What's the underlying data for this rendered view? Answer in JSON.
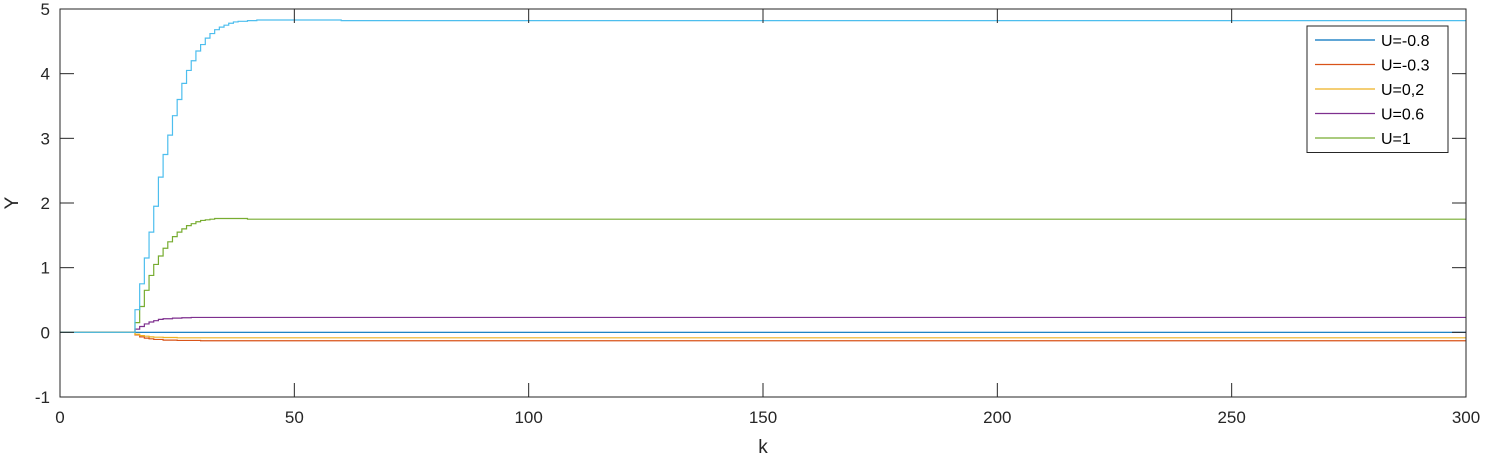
{
  "chart_data": {
    "type": "line",
    "step": true,
    "xlabel": "k",
    "ylabel": "Y",
    "xlim": [
      0,
      300
    ],
    "ylim": [
      -1,
      5
    ],
    "xticks": [
      0,
      50,
      100,
      150,
      200,
      250,
      300
    ],
    "yticks": [
      -1,
      0,
      1,
      2,
      3,
      4,
      5
    ],
    "grid": false,
    "legend_position": "top-right",
    "series": [
      {
        "name": "U=-0.8",
        "color": "#0072BD",
        "x": [
          0,
          15,
          17,
          20,
          25,
          30,
          40,
          60,
          300
        ],
        "y": [
          0,
          0,
          0,
          0,
          0,
          0,
          0,
          0,
          0
        ]
      },
      {
        "name": "U=-0.3",
        "color": "#D95319",
        "x": [
          0,
          15,
          16,
          17,
          18,
          19,
          20,
          22,
          25,
          30,
          35,
          40,
          60,
          300
        ],
        "y": [
          0,
          0,
          -0.04,
          -0.07,
          -0.09,
          -0.1,
          -0.11,
          -0.12,
          -0.125,
          -0.13,
          -0.13,
          -0.13,
          -0.13,
          -0.13
        ]
      },
      {
        "name": "U=0,2",
        "color": "#EDB120",
        "x": [
          0,
          15,
          16,
          17,
          18,
          19,
          20,
          22,
          25,
          30,
          35,
          40,
          60,
          300
        ],
        "y": [
          0,
          0,
          -0.03,
          -0.05,
          -0.06,
          -0.07,
          -0.075,
          -0.08,
          -0.085,
          -0.085,
          -0.085,
          -0.085,
          -0.085,
          -0.085
        ]
      },
      {
        "name": "U=0.6",
        "color": "#7E2F8E",
        "x": [
          0,
          15,
          16,
          17,
          18,
          19,
          20,
          21,
          22,
          24,
          26,
          28,
          30,
          35,
          40,
          60,
          300
        ],
        "y": [
          0,
          0,
          0.05,
          0.09,
          0.13,
          0.16,
          0.18,
          0.2,
          0.21,
          0.22,
          0.225,
          0.23,
          0.23,
          0.23,
          0.23,
          0.23,
          0.23
        ]
      },
      {
        "name": "U=1",
        "color": "#77AC30",
        "x": [
          0,
          15,
          16,
          17,
          18,
          19,
          20,
          21,
          22,
          23,
          24,
          25,
          26,
          27,
          28,
          29,
          30,
          31,
          32,
          33,
          35,
          40,
          60,
          300
        ],
        "y": [
          0,
          0,
          0.15,
          0.4,
          0.65,
          0.88,
          1.05,
          1.18,
          1.3,
          1.4,
          1.48,
          1.55,
          1.6,
          1.65,
          1.68,
          1.71,
          1.73,
          1.74,
          1.75,
          1.76,
          1.76,
          1.75,
          1.75,
          1.75
        ]
      },
      {
        "name": "",
        "color": "#4DBEEE",
        "x": [
          0,
          15,
          16,
          17,
          18,
          19,
          20,
          21,
          22,
          23,
          24,
          25,
          26,
          27,
          28,
          29,
          30,
          31,
          32,
          33,
          34,
          35,
          36,
          37,
          38,
          40,
          42,
          45,
          50,
          60,
          300
        ],
        "y": [
          0,
          0,
          0.35,
          0.75,
          1.15,
          1.55,
          1.95,
          2.4,
          2.75,
          3.05,
          3.35,
          3.6,
          3.85,
          4.05,
          4.2,
          4.35,
          4.45,
          4.55,
          4.62,
          4.68,
          4.72,
          4.75,
          4.78,
          4.8,
          4.81,
          4.82,
          4.83,
          4.83,
          4.83,
          4.82,
          4.82
        ]
      }
    ]
  }
}
